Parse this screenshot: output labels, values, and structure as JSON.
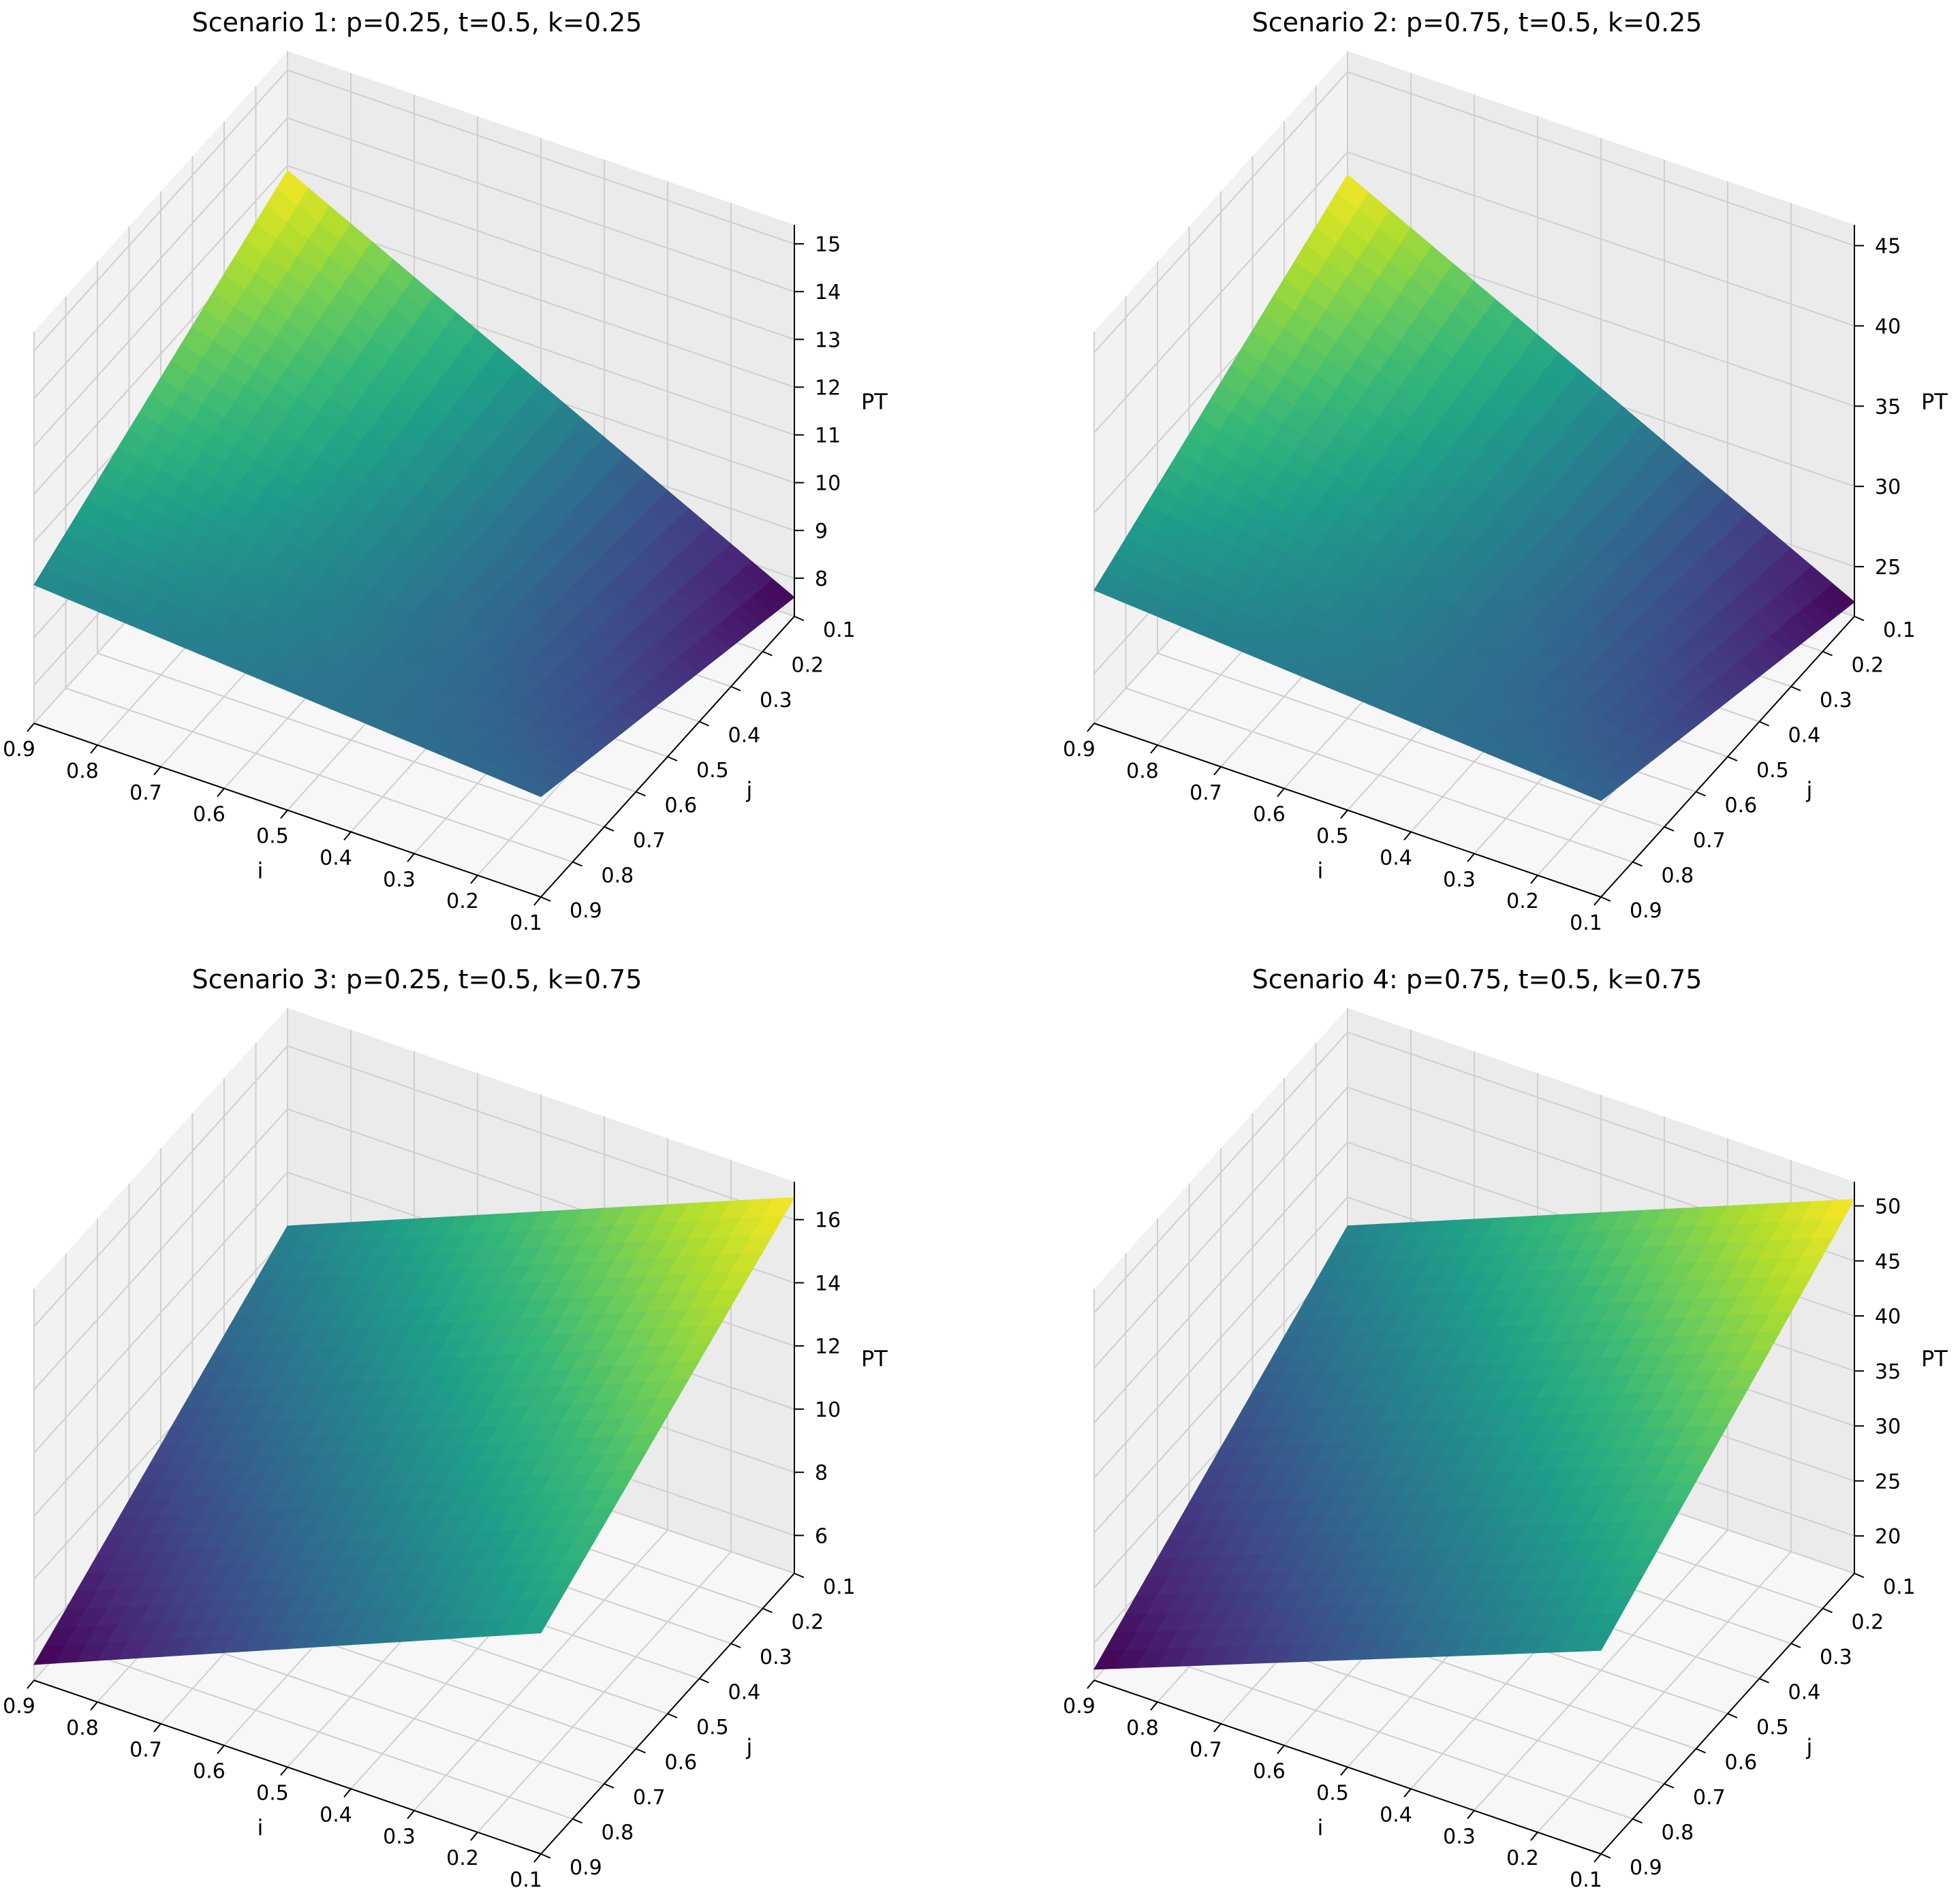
{
  "chart_data": [
    {
      "type": "surface",
      "title": "Scenario 1: p=0.25, t=0.5, k=0.25",
      "xlabel": "i",
      "ylabel": "j",
      "zlabel": "PT",
      "i_ticks": [
        "0.9",
        "0.8",
        "0.7",
        "0.6",
        "0.5",
        "0.4",
        "0.3",
        "0.2",
        "0.1"
      ],
      "j_ticks": [
        "0.1",
        "0.2",
        "0.3",
        "0.4",
        "0.5",
        "0.6",
        "0.7",
        "0.8",
        "0.9"
      ],
      "z_ticks": [
        "8",
        "9",
        "10",
        "11",
        "12",
        "13",
        "14",
        "15"
      ],
      "xlim": [
        0.1,
        0.9
      ],
      "ylim": [
        0.1,
        0.9
      ],
      "zlim": [
        7.2,
        15.4
      ],
      "colormap": "viridis",
      "corners": {
        "i_high_j_low": 12.9,
        "i_low_j_low": 7.6,
        "i_high_j_high": 10.1,
        "i_low_j_high": 9.3
      }
    },
    {
      "type": "surface",
      "title": "Scenario 2: p=0.75, t=0.5, k=0.25",
      "xlabel": "i",
      "ylabel": "j",
      "zlabel": "PT",
      "i_ticks": [
        "0.9",
        "0.8",
        "0.7",
        "0.6",
        "0.5",
        "0.4",
        "0.3",
        "0.2",
        "0.1"
      ],
      "j_ticks": [
        "0.1",
        "0.2",
        "0.3",
        "0.4",
        "0.5",
        "0.6",
        "0.7",
        "0.8",
        "0.9"
      ],
      "z_ticks": [
        "25",
        "30",
        "35",
        "40",
        "45"
      ],
      "xlim": [
        0.1,
        0.9
      ],
      "ylim": [
        0.1,
        0.9
      ],
      "zlim": [
        21.9,
        46.3
      ],
      "colormap": "viridis",
      "corners": {
        "i_high_j_low": 38.6,
        "i_low_j_low": 22.8,
        "i_high_j_high": 30.2,
        "i_low_j_high": 27.9
      }
    },
    {
      "type": "surface",
      "title": "Scenario 3: p=0.25, t=0.5, k=0.75",
      "xlabel": "i",
      "ylabel": "j",
      "zlabel": "PT",
      "i_ticks": [
        "0.9",
        "0.8",
        "0.7",
        "0.6",
        "0.5",
        "0.4",
        "0.3",
        "0.2",
        "0.1"
      ],
      "j_ticks": [
        "0.1",
        "0.2",
        "0.3",
        "0.4",
        "0.5",
        "0.6",
        "0.7",
        "0.8",
        "0.9"
      ],
      "z_ticks": [
        "6",
        "8",
        "10",
        "12",
        "14",
        "16"
      ],
      "xlim": [
        0.1,
        0.9
      ],
      "ylim": [
        0.1,
        0.9
      ],
      "zlim": [
        4.8,
        17.2
      ],
      "colormap": "viridis",
      "corners": {
        "i_high_j_low": 10.3,
        "i_low_j_low": 16.7,
        "i_high_j_high": 5.3,
        "i_low_j_high": 11.8
      }
    },
    {
      "type": "surface",
      "title": "Scenario 4: p=0.75, t=0.5, k=0.75",
      "xlabel": "i",
      "ylabel": "j",
      "zlabel": "PT",
      "i_ticks": [
        "0.9",
        "0.8",
        "0.7",
        "0.6",
        "0.5",
        "0.4",
        "0.3",
        "0.2",
        "0.1"
      ],
      "j_ticks": [
        "0.1",
        "0.2",
        "0.3",
        "0.4",
        "0.5",
        "0.6",
        "0.7",
        "0.8",
        "0.9"
      ],
      "z_ticks": [
        "20",
        "25",
        "30",
        "35",
        "40",
        "45",
        "50"
      ],
      "xlim": [
        0.1,
        0.9
      ],
      "ylim": [
        0.1,
        0.9
      ],
      "zlim": [
        16.6,
        52.2
      ],
      "colormap": "viridis",
      "corners": {
        "i_high_j_low": 32.4,
        "i_low_j_low": 50.6,
        "i_high_j_high": 17.6,
        "i_low_j_high": 35.1
      }
    }
  ]
}
